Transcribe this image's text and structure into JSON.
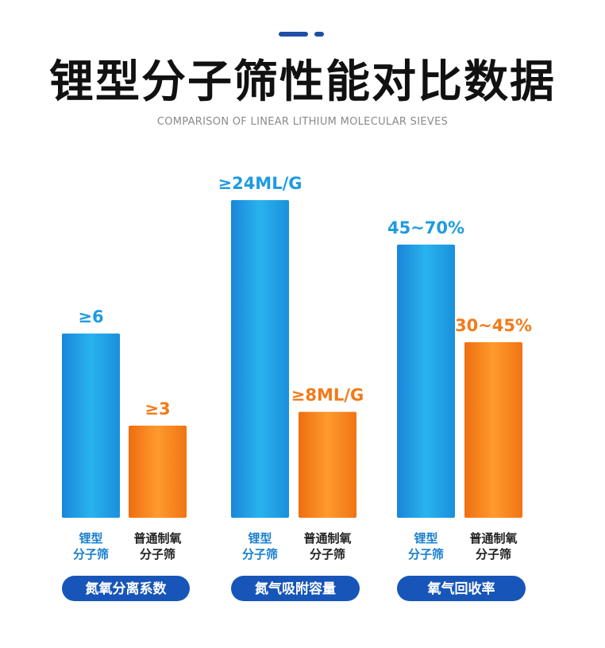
{
  "title": "锂型分子筛性能对比数据",
  "subtitle": "COMPARISON OF LINEAR LITHIUM MOLECULAR SIEVES",
  "colors": {
    "lithium": "#1e9be0",
    "common": "#f27a18",
    "pill": "#1756b8",
    "deco": "#1f4fa6"
  },
  "chart_data": [
    {
      "type": "bar",
      "group_label": "氮氧分离系数",
      "series": [
        {
          "name": "锂型分子筛",
          "value": 6,
          "label": "≥6"
        },
        {
          "name": "普通制氧分子筛",
          "value": 3,
          "label": "≥3"
        }
      ]
    },
    {
      "type": "bar",
      "group_label": "氮气吸附容量",
      "series": [
        {
          "name": "锂型分子筛",
          "value": 24,
          "label": "≥24ML/G"
        },
        {
          "name": "普通制氧分子筛",
          "value": 8,
          "label": "≥8ML/G"
        }
      ]
    },
    {
      "type": "bar",
      "group_label": "氧气回收率",
      "series": [
        {
          "name": "锂型分子筛",
          "value": 70,
          "label": "45~70%"
        },
        {
          "name": "普通制氧分子筛",
          "value": 45,
          "label": "30~45%"
        }
      ]
    }
  ],
  "category_labels": {
    "lithium": [
      "锂型",
      "分子筛"
    ],
    "common": [
      "普通制氧",
      "分子筛"
    ]
  }
}
